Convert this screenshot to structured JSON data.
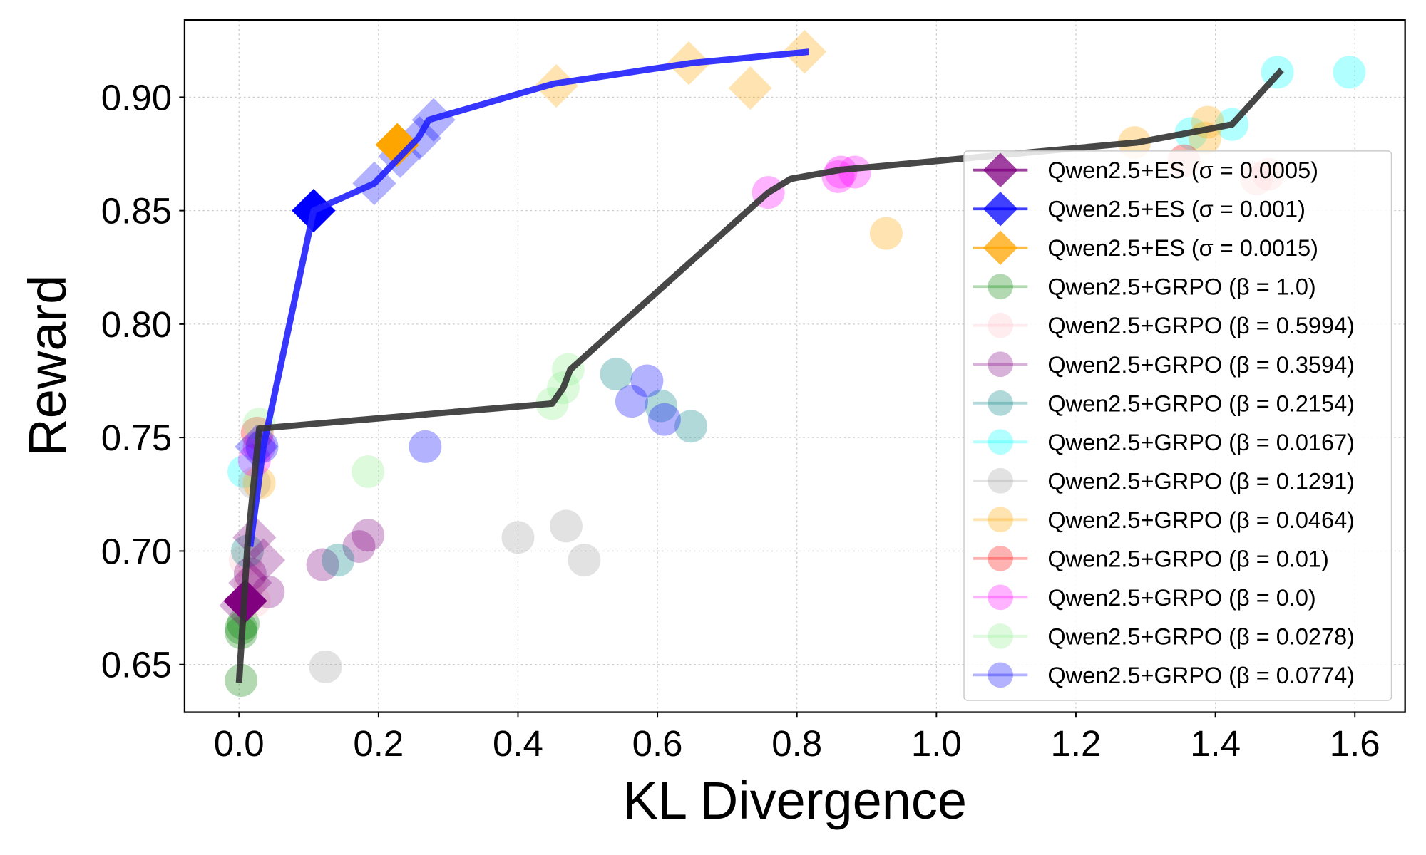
{
  "chart_data": {
    "type": "scatter",
    "xlabel": "KL Divergence",
    "ylabel": "Reward",
    "xlim": [
      -0.078,
      1.672
    ],
    "ylim": [
      0.629,
      0.934
    ],
    "xticks": [
      "0.0",
      "0.2",
      "0.4",
      "0.6",
      "0.8",
      "1.0",
      "1.2",
      "1.4",
      "1.6"
    ],
    "yticks": [
      "0.65",
      "0.70",
      "0.75",
      "0.80",
      "0.85",
      "0.90"
    ],
    "grid": true,
    "legend_position": "right",
    "mean_lines": [
      {
        "color": "#2020ff",
        "points": [
          [
            0.016,
            0.702
          ],
          [
            0.035,
            0.746
          ],
          [
            0.107,
            0.85
          ],
          [
            0.194,
            0.862
          ],
          [
            0.257,
            0.882
          ],
          [
            0.272,
            0.89
          ],
          [
            0.452,
            0.906
          ],
          [
            0.648,
            0.915
          ],
          [
            0.817,
            0.92
          ]
        ]
      },
      {
        "color": "#333333",
        "points": [
          [
            0.0,
            0.642
          ],
          [
            0.012,
            0.702
          ],
          [
            0.029,
            0.754
          ],
          [
            0.449,
            0.765
          ],
          [
            0.465,
            0.772
          ],
          [
            0.475,
            0.78
          ],
          [
            0.759,
            0.858
          ],
          [
            0.791,
            0.864
          ],
          [
            0.863,
            0.868
          ],
          [
            1.287,
            0.88
          ],
          [
            1.391,
            0.886
          ],
          [
            1.424,
            0.888
          ],
          [
            1.495,
            0.912
          ]
        ]
      }
    ],
    "series": [
      {
        "name": "Qwen2.5+ES (σ = 0.0005)",
        "marker": "diamond",
        "color": "#800080",
        "points": [
          [
            0.009,
            0.678,
            1
          ],
          [
            0.022,
            0.706,
            0.3
          ],
          [
            0.035,
            0.696,
            0.3
          ],
          [
            0.016,
            0.686,
            0.3
          ],
          [
            0.003,
            0.676,
            0.3
          ]
        ]
      },
      {
        "name": "Qwen2.5+ES (σ = 0.001)",
        "marker": "diamond",
        "color": "#0000ff",
        "points": [
          [
            0.107,
            0.85,
            1
          ],
          [
            0.194,
            0.862,
            0.3
          ],
          [
            0.231,
            0.874,
            0.3
          ],
          [
            0.259,
            0.882,
            0.3
          ],
          [
            0.279,
            0.89,
            0.3
          ],
          [
            0.025,
            0.746,
            0.3
          ]
        ]
      },
      {
        "name": "Qwen2.5+ES (σ = 0.0015)",
        "marker": "diamond",
        "color": "#ffa500",
        "points": [
          [
            0.227,
            0.879,
            1
          ],
          [
            0.455,
            0.905,
            0.3
          ],
          [
            0.645,
            0.915,
            0.3
          ],
          [
            0.733,
            0.904,
            0.3
          ],
          [
            0.811,
            0.92,
            0.3
          ]
        ]
      },
      {
        "name": "Qwen2.5+GRPO (β = 1.0)",
        "marker": "circle",
        "color": "#008000",
        "points": [
          [
            0.003,
            0.666,
            0.3
          ],
          [
            0.003,
            0.664,
            0.3
          ],
          [
            0.003,
            0.643,
            0.3
          ],
          [
            0.006,
            0.668,
            0.3
          ]
        ]
      },
      {
        "name": "Qwen2.5+GRPO (β = 0.5994)",
        "marker": "circle",
        "color": "#ffc0cb",
        "points": [
          [
            0.016,
            0.686,
            0.3
          ],
          [
            0.009,
            0.696,
            0.3
          ],
          [
            0.022,
            0.678,
            0.3
          ]
        ]
      },
      {
        "name": "Qwen2.5+GRPO (β = 0.3594)",
        "marker": "circle",
        "color": "#800080",
        "points": [
          [
            0.12,
            0.694,
            0.3
          ],
          [
            0.172,
            0.702,
            0.3
          ],
          [
            0.185,
            0.707,
            0.3
          ],
          [
            0.042,
            0.682,
            0.3
          ],
          [
            0.016,
            0.69,
            0.3
          ]
        ]
      },
      {
        "name": "Qwen2.5+GRPO (β = 0.2154)",
        "marker": "circle",
        "color": "#008080",
        "points": [
          [
            0.142,
            0.696,
            0.3
          ],
          [
            0.541,
            0.778,
            0.3
          ],
          [
            0.605,
            0.764,
            0.3
          ],
          [
            0.648,
            0.755,
            0.3
          ],
          [
            0.012,
            0.7,
            0.3
          ]
        ]
      },
      {
        "name": "Qwen2.5+GRPO (β = 0.0167)",
        "marker": "circle",
        "color": "#00ffff",
        "points": [
          [
            1.489,
            0.911,
            0.3
          ],
          [
            1.592,
            0.911,
            0.3
          ],
          [
            1.424,
            0.888,
            0.3
          ],
          [
            1.365,
            0.884,
            0.3
          ],
          [
            0.007,
            0.735,
            0.3
          ]
        ]
      },
      {
        "name": "Qwen2.5+GRPO (β = 0.1291)",
        "marker": "circle",
        "color": "#a0a0a0",
        "points": [
          [
            0.124,
            0.649,
            0.3
          ],
          [
            0.4,
            0.706,
            0.3
          ],
          [
            0.469,
            0.711,
            0.3
          ],
          [
            0.495,
            0.696,
            0.3
          ],
          [
            0.022,
            0.73,
            0.3
          ]
        ]
      },
      {
        "name": "Qwen2.5+GRPO (β = 0.0464)",
        "marker": "circle",
        "color": "#ffa500",
        "points": [
          [
            1.284,
            0.88,
            0.3
          ],
          [
            0.928,
            0.84,
            0.3
          ],
          [
            1.389,
            0.889,
            0.3
          ],
          [
            1.385,
            0.882,
            0.3
          ],
          [
            0.029,
            0.73,
            0.3
          ]
        ]
      },
      {
        "name": "Qwen2.5+GRPO (β = 0.01)",
        "marker": "circle",
        "color": "#ff0000",
        "points": [
          [
            1.355,
            0.872,
            0.3
          ],
          [
            1.459,
            0.864,
            0.3
          ],
          [
            1.476,
            0.866,
            0.3
          ],
          [
            0.026,
            0.752,
            0.3
          ]
        ]
      },
      {
        "name": "Qwen2.5+GRPO (β = 0.0)",
        "marker": "circle",
        "color": "#ff00ff",
        "points": [
          [
            0.759,
            0.858,
            0.3
          ],
          [
            0.859,
            0.865,
            0.3
          ],
          [
            0.863,
            0.867,
            0.3
          ],
          [
            0.883,
            0.867,
            0.3
          ],
          [
            0.022,
            0.74,
            0.3
          ],
          [
            0.029,
            0.746,
            0.3
          ]
        ]
      },
      {
        "name": "Qwen2.5+GRPO (β = 0.0278)",
        "marker": "circle",
        "color": "#90ee90",
        "points": [
          [
            0.185,
            0.735,
            0.3
          ],
          [
            0.449,
            0.765,
            0.3
          ],
          [
            0.465,
            0.772,
            0.3
          ],
          [
            0.472,
            0.78,
            0.3
          ],
          [
            0.029,
            0.756,
            0.3
          ]
        ]
      },
      {
        "name": "Qwen2.5+GRPO (β = 0.0774)",
        "marker": "circle",
        "color": "#0000ff",
        "points": [
          [
            0.267,
            0.746,
            0.3
          ],
          [
            0.585,
            0.775,
            0.3
          ],
          [
            0.563,
            0.766,
            0.3
          ],
          [
            0.61,
            0.758,
            0.3
          ],
          [
            0.033,
            0.746,
            0.3
          ]
        ]
      }
    ]
  }
}
